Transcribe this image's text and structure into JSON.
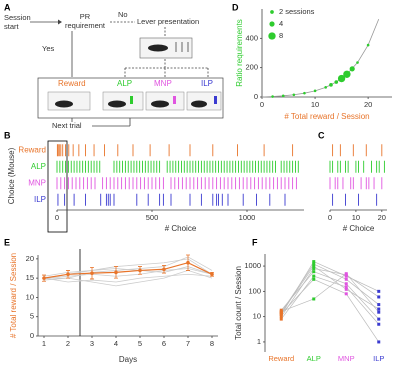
{
  "diagram": {
    "label": "A",
    "session_start": [
      "Session",
      "start"
    ],
    "pr_requirement": [
      "PR",
      "requirement"
    ],
    "no": "No",
    "lever_presentation": "Lever presentation",
    "yes": "Yes",
    "outcomes": [
      "Reward",
      "ALP",
      "MNP",
      "ILP"
    ],
    "next_trial": "Next trial"
  },
  "chart_data": [
    {
      "label": "D",
      "type": "scatter",
      "xlabel": "# Total reward / Session",
      "xlabel_color": "#e8742a",
      "ylabel": "Ratio requirements",
      "ylabel_color": "#2ecc2e",
      "color": "#2ecc2e",
      "xlim": [
        0,
        24.5
      ],
      "xticks": [
        0,
        10,
        20
      ],
      "ylim": [
        0,
        600
      ],
      "yticks": [
        0,
        200,
        400
      ],
      "x": [
        2,
        4,
        6,
        8,
        10,
        12,
        13,
        14,
        15,
        16,
        17,
        18,
        20
      ],
      "y": [
        3,
        8,
        15,
        26,
        42,
        66,
        83,
        102,
        126,
        155,
        192,
        235,
        354
      ],
      "sessions": [
        1,
        1,
        1,
        1,
        1,
        1,
        2,
        2,
        8,
        8,
        4,
        1,
        1
      ],
      "curve": {
        "color": "#999999",
        "x": [
          0,
          2,
          4,
          6,
          8,
          10,
          12,
          14,
          16,
          18,
          20,
          22
        ],
        "y": [
          0,
          3.3,
          8.1,
          15.3,
          26,
          42,
          66,
          102,
          155,
          235,
          354,
          531
        ]
      },
      "legend": [
        {
          "name": "2 sessions",
          "size": 2
        },
        {
          "name": "4",
          "size": 4
        },
        {
          "name": "8",
          "size": 8
        }
      ],
      "legend_corner": "top-left"
    },
    {
      "label": "B",
      "type": "raster",
      "xlabel": "# Choice",
      "ylabel": "Choice (Mouse)",
      "xlim": [
        0,
        1300
      ],
      "xticks": [
        0,
        500,
        1000
      ],
      "series": [
        {
          "name": "Reward",
          "color": "#e8742a",
          "values": [
            2,
            6,
            12,
            20,
            30,
            45,
            62,
            85,
            115,
            150,
            195,
            250,
            320,
            400,
            490,
            590,
            700,
            820,
            950,
            1090,
            1240
          ]
        },
        {
          "name": "ALP",
          "color": "#2ecc2e",
          "values": [
            0,
            15,
            30,
            45,
            60,
            75,
            90,
            105,
            120,
            135,
            150,
            165,
            180,
            195,
            210,
            225,
            300,
            315,
            330,
            345,
            360,
            375,
            390,
            405,
            420,
            435,
            450,
            465,
            480,
            495,
            510,
            525,
            540,
            580,
            595,
            610,
            625,
            640,
            655,
            670,
            685,
            700,
            715,
            730,
            745,
            760,
            775,
            790,
            805,
            820,
            835,
            850,
            865,
            880,
            895,
            910,
            925,
            940,
            955,
            970,
            985,
            1000,
            1015,
            1030,
            1045,
            1060,
            1075,
            1090,
            1105,
            1120,
            1135,
            1150,
            1180,
            1195,
            1210,
            1225,
            1240,
            1255,
            1270
          ]
        },
        {
          "name": "MNP",
          "color": "#e055e0",
          "values": [
            0,
            20,
            40,
            60,
            80,
            100,
            120,
            140,
            160,
            180,
            200,
            240,
            260,
            280,
            300,
            320,
            340,
            360,
            380,
            400,
            420,
            440,
            460,
            480,
            500,
            520,
            540,
            560,
            600,
            620,
            640,
            660,
            680,
            700,
            720,
            740,
            760,
            780,
            800,
            820,
            840,
            860,
            880,
            900,
            920,
            940,
            960,
            980,
            1000,
            1020,
            1040,
            1060,
            1080,
            1100,
            1120,
            1140,
            1160,
            1180,
            1200,
            1220,
            1240,
            1260
          ]
        },
        {
          "name": "ILP",
          "color": "#3a3ad0",
          "values": [
            5,
            40,
            90,
            150,
            230,
            260,
            270,
            280,
            300,
            420,
            480,
            540,
            560,
            600,
            700,
            760,
            820,
            840,
            850,
            870,
            900,
            980,
            1050,
            1120,
            1200
          ]
        }
      ]
    },
    {
      "label": "C",
      "type": "raster",
      "xlabel": "# Choice",
      "xlim": [
        0,
        22
      ],
      "xticks": [
        0,
        10,
        20
      ],
      "series": [
        {
          "color": "#e8742a",
          "values": [
            1,
            4,
            9,
            14,
            20
          ]
        },
        {
          "color": "#2ecc2e",
          "values": [
            0,
            1,
            3,
            4,
            6,
            7,
            10,
            11,
            13,
            16,
            18,
            19,
            21
          ]
        },
        {
          "color": "#e055e0",
          "values": [
            0,
            2,
            3,
            5,
            8,
            9,
            12,
            14,
            15,
            17,
            20
          ]
        },
        {
          "color": "#3a3ad0",
          "values": [
            1,
            6,
            11,
            18
          ]
        }
      ]
    },
    {
      "label": "E",
      "type": "line",
      "xlabel": "Days",
      "ylabel": "# Total reward / Session",
      "ylabel_color": "#e8742a",
      "x": [
        1,
        2,
        3,
        4,
        5,
        6,
        7,
        8
      ],
      "xlim": [
        0.75,
        8.25
      ],
      "xticks": [
        1,
        2,
        3,
        4,
        5,
        6,
        7,
        8
      ],
      "ylim": [
        0,
        21
      ],
      "yticks": [
        0,
        5,
        10,
        15,
        20
      ],
      "vline": 2.5,
      "series": [
        {
          "color": "#cccccc",
          "values": [
            15,
            15.5,
            16,
            15.5,
            16,
            17,
            17.5,
            16
          ]
        },
        {
          "color": "#cccccc",
          "values": [
            15,
            14,
            14.5,
            14,
            15,
            15.5,
            16,
            15.5
          ]
        },
        {
          "color": "#cccccc",
          "values": [
            15,
            16,
            17,
            18,
            18.5,
            19,
            20,
            16
          ]
        },
        {
          "color": "#cccccc",
          "values": [
            14.5,
            15,
            16.5,
            17,
            17.5,
            18,
            20.5,
            17
          ]
        },
        {
          "color": "#cccccc",
          "values": [
            15.5,
            16.5,
            17,
            17.5,
            17,
            16.5,
            18,
            16
          ]
        },
        {
          "color": "#cccccc",
          "values": [
            15,
            15,
            14,
            13,
            14,
            15,
            17,
            15
          ]
        },
        {
          "color": "#e8742a",
          "values": [
            15,
            16,
            16.3,
            16.5,
            17,
            17.3,
            19,
            16
          ],
          "errors": [
            0.8,
            1,
            1.5,
            1.5,
            1,
            1,
            2,
            0.5
          ]
        }
      ]
    },
    {
      "label": "F",
      "type": "dot",
      "ylabel": "Total count / Session",
      "log": true,
      "categories": [
        "Reward",
        "ALP",
        "MNP",
        "ILP"
      ],
      "category_colors": [
        "#e8742a",
        "#2ecc2e",
        "#e055e0",
        "#3a3ad0"
      ],
      "ylim": [
        0.4,
        3000
      ],
      "yticks": [
        1,
        10,
        100,
        1000
      ],
      "series": [
        {
          "color": "#bbbbbb",
          "values": [
            12,
            1500,
            400,
            100
          ]
        },
        {
          "color": "#bbbbbb",
          "values": [
            15,
            1200,
            300,
            30
          ]
        },
        {
          "color": "#bbbbbb",
          "values": [
            10,
            800,
            450,
            60
          ]
        },
        {
          "color": "#bbbbbb",
          "values": [
            18,
            600,
            200,
            8
          ]
        },
        {
          "color": "#bbbbbb",
          "values": [
            14,
            1000,
            120,
            20
          ]
        },
        {
          "color": "#bbbbbb",
          "values": [
            8,
            400,
            150,
            5
          ]
        },
        {
          "color": "#bbbbbb",
          "values": [
            13,
            300,
            80,
            1
          ]
        },
        {
          "color": "#bbbbbb",
          "values": [
            16,
            50,
            500,
            15
          ]
        }
      ]
    }
  ]
}
